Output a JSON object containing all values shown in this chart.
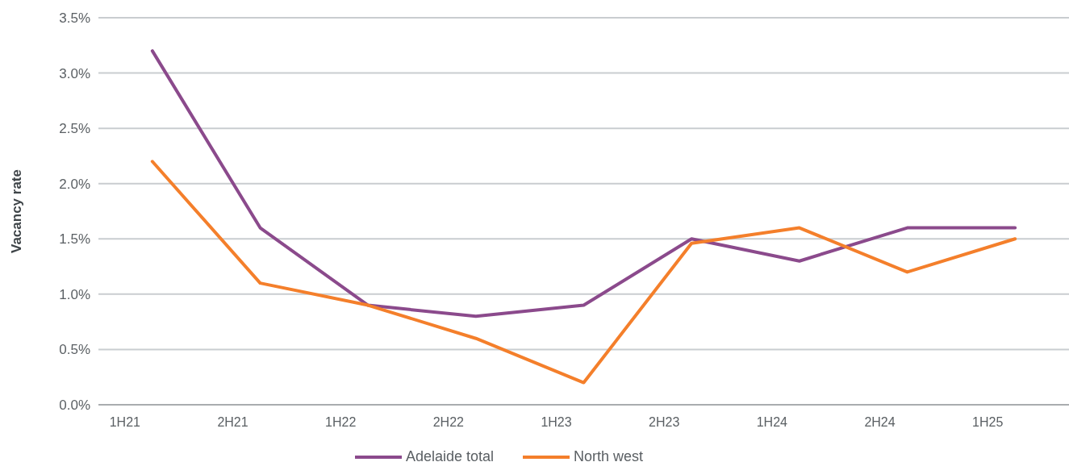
{
  "chart_data": {
    "type": "line",
    "ylabel": "Vacancy rate",
    "categories": [
      "1H21",
      "2H21",
      "1H22",
      "2H22",
      "1H23",
      "2H23",
      "1H24",
      "2H24",
      "1H25"
    ],
    "series": [
      {
        "name": "Adelaide total",
        "color": "#8b4a8c",
        "values": [
          3.2,
          1.6,
          0.9,
          0.8,
          0.9,
          1.5,
          1.3,
          1.6,
          1.6
        ]
      },
      {
        "name": "North west",
        "color": "#f47f2b",
        "values": [
          2.2,
          1.1,
          0.9,
          0.6,
          0.2,
          1.46,
          1.6,
          1.2,
          1.5
        ]
      }
    ],
    "ylim": [
      0,
      3.5
    ],
    "yticks": [
      {
        "value": 0,
        "label": "0.0%"
      },
      {
        "value": 0.5,
        "label": "0.5%"
      },
      {
        "value": 1,
        "label": "1.0%"
      },
      {
        "value": 1.5,
        "label": "1.5%"
      },
      {
        "value": 2,
        "label": "2.0%"
      },
      {
        "value": 2.5,
        "label": "2.5%"
      },
      {
        "value": 3,
        "label": "3.0%"
      },
      {
        "value": 3.5,
        "label": "3.5%"
      }
    ],
    "grid": "y",
    "legend": "bottom",
    "marker": "none",
    "line_style": "solid"
  }
}
